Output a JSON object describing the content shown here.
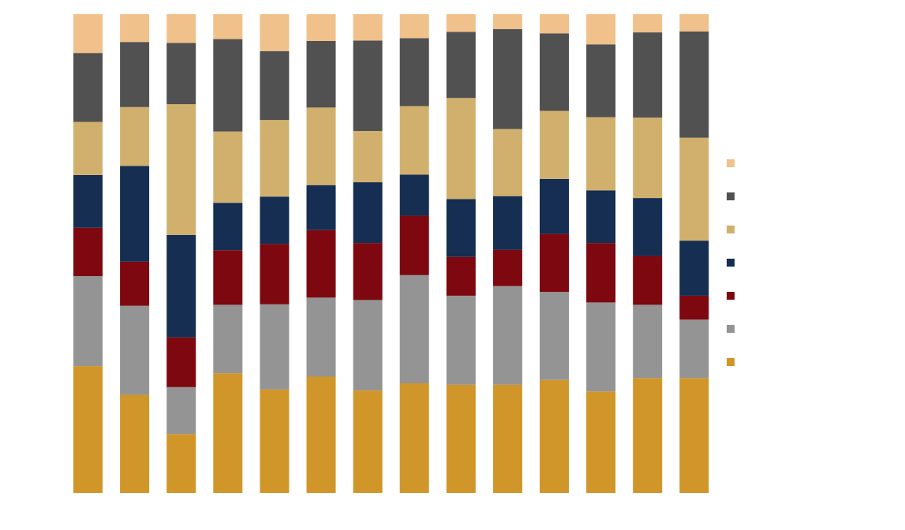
{
  "chart_data": {
    "type": "bar",
    "stacked": true,
    "percent": true,
    "categories": [
      "",
      "",
      "",
      "",
      "",
      "",
      "",
      "",
      "",
      "",
      "",
      "",
      "",
      ""
    ],
    "ylim": [
      0,
      100
    ],
    "grid": false,
    "legend_position": "right",
    "series": [
      {
        "color": "#D09629",
        "values": [
          26.5,
          20.5,
          12.3,
          25.0,
          21.6,
          24.3,
          21.4,
          22.9,
          22.6,
          22.6,
          23.6,
          21.2,
          24.0,
          24.0
        ]
      },
      {
        "color": "#949494",
        "values": [
          18.8,
          18.6,
          9.8,
          14.3,
          17.8,
          16.5,
          18.9,
          22.6,
          18.6,
          20.6,
          18.4,
          18.6,
          15.3,
          12.2
        ]
      },
      {
        "color": "#7D0810",
        "values": [
          10.1,
          9.2,
          10.4,
          11.4,
          12.6,
          14.1,
          11.9,
          12.4,
          8.1,
          7.6,
          12.1,
          12.4,
          10.2,
          5.0
        ]
      },
      {
        "color": "#152E52",
        "values": [
          11.0,
          20.0,
          21.4,
          9.9,
          9.9,
          9.4,
          12.7,
          8.6,
          12.1,
          11.2,
          11.5,
          11.0,
          12.1,
          11.5
        ]
      },
      {
        "color": "#D1B06E",
        "values": [
          11.1,
          12.3,
          27.3,
          14.9,
          16.0,
          16.2,
          10.7,
          14.3,
          21.1,
          14.0,
          14.2,
          15.3,
          16.8,
          21.5
        ]
      },
      {
        "color": "#515151",
        "values": [
          14.4,
          13.6,
          12.8,
          19.3,
          14.4,
          13.9,
          18.9,
          14.2,
          13.8,
          20.9,
          16.2,
          15.2,
          17.8,
          22.2
        ]
      },
      {
        "color": "#F0C18A",
        "values": [
          8.1,
          5.8,
          6.0,
          5.2,
          7.7,
          5.6,
          5.5,
          5.0,
          3.7,
          3.1,
          4.0,
          6.3,
          3.8,
          3.6
        ]
      }
    ]
  }
}
